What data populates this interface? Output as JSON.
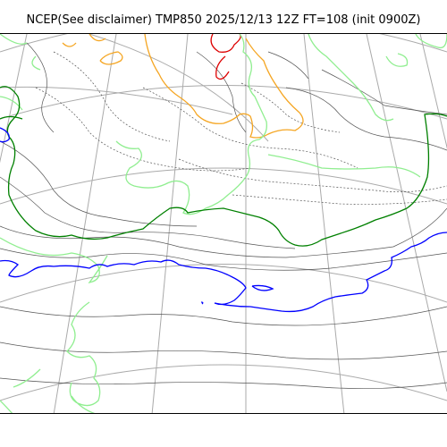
{
  "title": "NCEP(See disclaimer) TMP850 2025/12/13 12Z FT=108 (init 0900Z)",
  "colors": {
    "graticule": "#aaaaaa",
    "coastline": "#555555",
    "isotherm_minus30": "#dd0000",
    "isotherm_minus24": "#f5a623",
    "isotherm_minus18": "#90ee90",
    "isotherm_minus6": "#008000",
    "isotherm_0": "#0000ff"
  }
}
